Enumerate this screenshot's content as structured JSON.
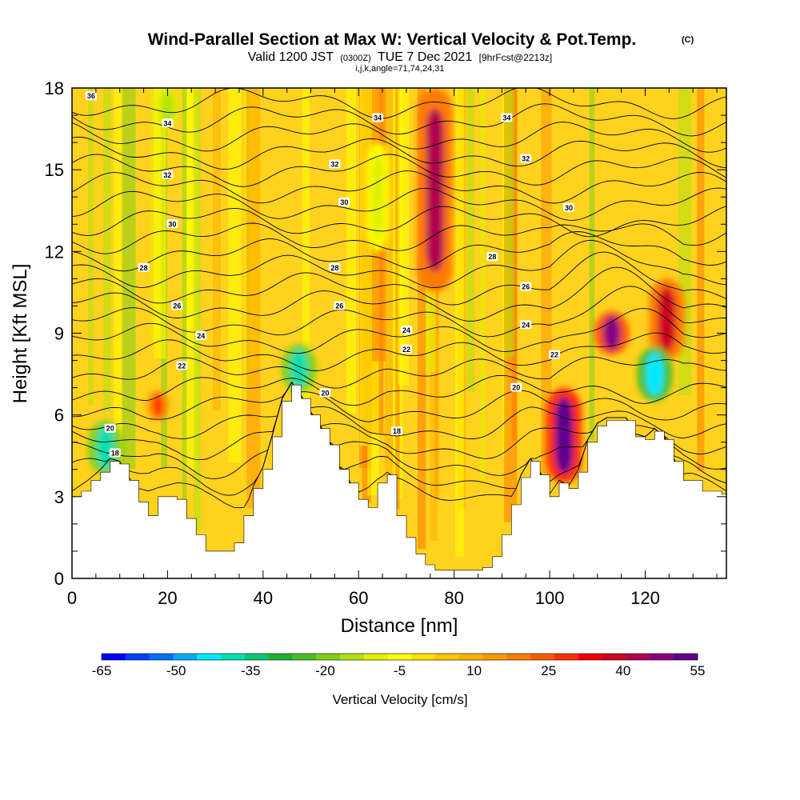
{
  "header": {
    "title": "Wind-Parallel Section at Max W: Vertical Velocity & Pot.Temp.",
    "copyright": "(C)",
    "valid_prefix": "Valid 1200 JST",
    "valid_utc": "(0300Z)",
    "valid_date": "TUE 7 Dec 2021",
    "forecast": "[9hrFcst@2213z]",
    "indices": "i,j,k,angle=71,74,24,31"
  },
  "chart_data": {
    "type": "heatmap",
    "xlabel": "Distance [nm]",
    "ylabel": "Height [Kft MSL]",
    "xlim": [
      0,
      137
    ],
    "ylim": [
      0,
      18
    ],
    "x_ticks": [
      0,
      20,
      40,
      60,
      80,
      100,
      120
    ],
    "y_ticks": [
      0,
      3,
      6,
      9,
      12,
      15,
      18
    ],
    "colorbar": {
      "label": "Vertical Velocity [cm/s]",
      "min": -65,
      "max": 55,
      "step": 5,
      "tick_labels": [
        -65,
        -50,
        -35,
        -20,
        -5,
        10,
        25,
        40,
        55
      ],
      "colors": [
        "#0000ff",
        "#0040ff",
        "#0070ff",
        "#00a8ff",
        "#00e8ff",
        "#00e0b0",
        "#00c870",
        "#20b030",
        "#48c020",
        "#80d018",
        "#b0e010",
        "#e0f000",
        "#ffff00",
        "#ffe000",
        "#ffc800",
        "#ffb000",
        "#ff9800",
        "#ff7c00",
        "#ff5800",
        "#ff3000",
        "#f00000",
        "#d00020",
        "#b00050",
        "#880080",
        "#600090"
      ]
    },
    "terrain": {
      "x": [
        0,
        2,
        4,
        6,
        8,
        10,
        12,
        14,
        16,
        18,
        20,
        22,
        24,
        26,
        28,
        30,
        32,
        34,
        36,
        38,
        40,
        42,
        44,
        46,
        48,
        50,
        52,
        54,
        56,
        58,
        60,
        62,
        64,
        66,
        68,
        70,
        72,
        74,
        76,
        78,
        80,
        82,
        84,
        86,
        88,
        90,
        92,
        94,
        96,
        98,
        100,
        102,
        104,
        106,
        108,
        110,
        112,
        114,
        116,
        118,
        120,
        122,
        124,
        126,
        128,
        130,
        132,
        134,
        136,
        137
      ],
      "height_kft": [
        3.0,
        3.2,
        3.6,
        3.9,
        4.3,
        4.2,
        3.6,
        2.8,
        2.3,
        3.0,
        3.0,
        2.9,
        2.2,
        1.6,
        1.0,
        1.0,
        1.0,
        1.3,
        2.3,
        3.3,
        4.0,
        5.2,
        6.5,
        7.1,
        6.6,
        6.0,
        5.5,
        4.9,
        4.0,
        3.5,
        2.9,
        2.6,
        3.5,
        3.8,
        2.3,
        1.5,
        0.9,
        0.5,
        0.3,
        0.3,
        0.3,
        0.3,
        0.3,
        0.4,
        0.8,
        1.6,
        2.7,
        3.7,
        4.3,
        3.8,
        3.0,
        3.5,
        3.3,
        3.9,
        5.0,
        5.6,
        5.8,
        5.8,
        5.8,
        5.2,
        5.1,
        5.4,
        5.1,
        4.3,
        3.6,
        3.6,
        3.2,
        3.2,
        3.1,
        3.0
      ]
    },
    "theta_contour_labels": [
      {
        "value": "36",
        "x": 4,
        "y": 17.7
      },
      {
        "value": "34",
        "x": 20,
        "y": 16.7
      },
      {
        "value": "34",
        "x": 64,
        "y": 16.9
      },
      {
        "value": "34",
        "x": 91,
        "y": 16.9
      },
      {
        "value": "32",
        "x": 20,
        "y": 14.8
      },
      {
        "value": "32",
        "x": 55,
        "y": 15.2
      },
      {
        "value": "32",
        "x": 95,
        "y": 15.4
      },
      {
        "value": "30",
        "x": 21,
        "y": 13.0
      },
      {
        "value": "30",
        "x": 57,
        "y": 13.8
      },
      {
        "value": "30",
        "x": 104,
        "y": 13.6
      },
      {
        "value": "28",
        "x": 15,
        "y": 11.4
      },
      {
        "value": "28",
        "x": 55,
        "y": 11.4
      },
      {
        "value": "28",
        "x": 88,
        "y": 11.8
      },
      {
        "value": "26",
        "x": 22,
        "y": 10.0
      },
      {
        "value": "26",
        "x": 56,
        "y": 10.0
      },
      {
        "value": "26",
        "x": 95,
        "y": 10.7
      },
      {
        "value": "24",
        "x": 27,
        "y": 8.9
      },
      {
        "value": "24",
        "x": 70,
        "y": 9.1
      },
      {
        "value": "24",
        "x": 95,
        "y": 9.3
      },
      {
        "value": "22",
        "x": 23,
        "y": 7.8
      },
      {
        "value": "22",
        "x": 70,
        "y": 8.4
      },
      {
        "value": "22",
        "x": 101,
        "y": 8.2
      },
      {
        "value": "20",
        "x": 53,
        "y": 6.8
      },
      {
        "value": "20",
        "x": 93,
        "y": 7.0
      },
      {
        "value": "20",
        "x": 8,
        "y": 5.5
      },
      {
        "value": "18",
        "x": 68,
        "y": 5.4
      },
      {
        "value": "18",
        "x": 9,
        "y": 4.6
      }
    ],
    "velocity_features_cm_s": [
      {
        "x": 76,
        "y_from": 10.5,
        "y_to": 18,
        "w": 45
      },
      {
        "x": 113,
        "y_from": 8.2,
        "y_to": 9.8,
        "w": 50
      },
      {
        "x": 103,
        "y_from": 3.5,
        "y_to": 7.0,
        "w": 55
      },
      {
        "x": 124.5,
        "y_from": 8.0,
        "y_to": 11.0,
        "w": 40
      },
      {
        "x": 122,
        "y_from": 6.5,
        "y_to": 8.5,
        "w": -45
      },
      {
        "x": 47.5,
        "y_from": 6.8,
        "y_to": 8.6,
        "w": -40
      },
      {
        "x": 7,
        "y_from": 3.8,
        "y_to": 5.8,
        "w": -40
      },
      {
        "x": 18,
        "y_from": 5.8,
        "y_to": 6.9,
        "w": 30
      },
      {
        "x": 64,
        "y_from": 12.0,
        "y_to": 16.0,
        "w": -10
      },
      {
        "x": 20,
        "y_from": 16.5,
        "y_to": 18,
        "w": -15
      }
    ]
  }
}
